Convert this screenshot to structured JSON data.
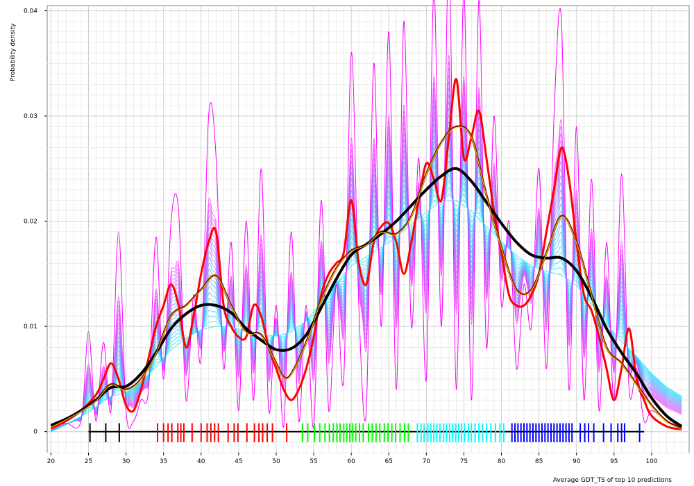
{
  "chart_data": {
    "type": "line",
    "title": "",
    "xlabel": "Average GDT_TS of top 10 predictions",
    "ylabel": "Probability density",
    "xlim": [
      19.5,
      105
    ],
    "ylim": [
      -0.002,
      0.0405
    ],
    "grid": true,
    "legend": "none",
    "x_ticks": [
      20,
      25,
      30,
      35,
      40,
      45,
      50,
      55,
      60,
      65,
      70,
      75,
      80,
      85,
      90,
      95,
      100
    ],
    "x_tick_labels": [
      "20",
      "25",
      "30",
      "35",
      "40",
      "45",
      "50",
      "55",
      "60",
      "65",
      "70",
      "75",
      "80",
      "85",
      "90",
      "95",
      "100"
    ],
    "y_ticks": [
      0,
      0.01,
      0.02,
      0.03,
      0.04
    ],
    "y_tick_labels": [
      "0",
      "0.01",
      "0.02",
      "0.03",
      "0.04"
    ],
    "series": [
      {
        "color": "#ff00ff",
        "width": 1,
        "x": [
          20,
          22,
          24,
          25,
          26,
          27,
          28,
          29,
          30,
          31,
          32,
          33,
          34,
          35,
          36,
          37,
          38,
          39,
          40,
          41,
          42,
          43,
          44,
          45,
          46,
          47,
          48,
          49,
          50,
          51,
          52,
          53,
          54,
          55,
          56,
          57,
          58,
          59,
          60,
          61,
          62,
          63,
          64,
          65,
          66,
          67,
          68,
          69,
          70,
          71,
          72,
          73,
          74,
          75,
          76,
          77,
          78,
          79,
          80,
          81,
          82,
          83,
          84,
          85,
          86,
          87,
          88,
          89,
          90,
          91,
          92,
          93,
          94,
          95,
          96,
          97,
          98,
          99,
          100,
          102,
          104
        ],
        "y": [
          0.0004,
          0.0008,
          0.001,
          0.0095,
          0.001,
          0.0085,
          0.002,
          0.019,
          0.002,
          0.001,
          0.003,
          0.004,
          0.0185,
          0.005,
          0.02,
          0.021,
          0.003,
          0.013,
          0.007,
          0.03,
          0.026,
          0.006,
          0.018,
          0.002,
          0.02,
          0.003,
          0.025,
          0.002,
          0.012,
          0.0005,
          0.019,
          0.001,
          0.012,
          0.0005,
          0.022,
          0.002,
          0.014,
          0.005,
          0.036,
          0.012,
          0.002,
          0.035,
          0.01,
          0.038,
          0.004,
          0.039,
          0.01,
          0.026,
          0.005,
          0.042,
          0.01,
          0.045,
          0.004,
          0.042,
          0.003,
          0.041,
          0.008,
          0.03,
          0.012,
          0.02,
          0.006,
          0.014,
          0.01,
          0.025,
          0.006,
          0.03,
          0.039,
          0.004,
          0.029,
          0.003,
          0.024,
          0.002,
          0.018,
          0.003,
          0.0245,
          0.004,
          0.006,
          0.001,
          0.002,
          0.001,
          0.0005
        ]
      },
      {
        "color": "#ff0000",
        "width": 3,
        "x": [
          20,
          22,
          24,
          26,
          27,
          28,
          29,
          30,
          31,
          32,
          33,
          34,
          35,
          36,
          37,
          38,
          39,
          40,
          41,
          42,
          43,
          44,
          45,
          46,
          47,
          48,
          49,
          50,
          51,
          52,
          53,
          54,
          55,
          56,
          57,
          58,
          59,
          60,
          61,
          62,
          63,
          64,
          65,
          66,
          67,
          68,
          69,
          70,
          71,
          72,
          73,
          74,
          75,
          76,
          77,
          78,
          79,
          80,
          81,
          82,
          83,
          84,
          85,
          86,
          87,
          88,
          89,
          90,
          91,
          92,
          93,
          94,
          95,
          96,
          97,
          98,
          99,
          100,
          102,
          104
        ],
        "y": [
          0.0003,
          0.001,
          0.002,
          0.0035,
          0.005,
          0.0065,
          0.005,
          0.0025,
          0.002,
          0.004,
          0.007,
          0.01,
          0.012,
          0.014,
          0.012,
          0.008,
          0.011,
          0.015,
          0.018,
          0.019,
          0.012,
          0.01,
          0.009,
          0.009,
          0.012,
          0.011,
          0.008,
          0.006,
          0.004,
          0.003,
          0.004,
          0.006,
          0.009,
          0.013,
          0.015,
          0.016,
          0.017,
          0.022,
          0.016,
          0.014,
          0.018,
          0.0195,
          0.0198,
          0.018,
          0.015,
          0.018,
          0.022,
          0.0255,
          0.024,
          0.022,
          0.028,
          0.0335,
          0.026,
          0.028,
          0.0305,
          0.026,
          0.021,
          0.017,
          0.013,
          0.012,
          0.012,
          0.013,
          0.015,
          0.019,
          0.023,
          0.027,
          0.024,
          0.018,
          0.013,
          0.0115,
          0.009,
          0.006,
          0.003,
          0.006,
          0.0098,
          0.005,
          0.003,
          0.0015,
          0.0005,
          0.0002
        ]
      },
      {
        "color": "#7a1f00",
        "width": 3,
        "x": [
          20,
          22,
          24,
          26,
          28,
          30,
          32,
          34,
          36,
          38,
          40,
          42,
          44,
          46,
          48,
          50,
          51,
          52,
          54,
          56,
          58,
          60,
          62,
          64,
          66,
          68,
          70,
          72,
          74,
          76,
          78,
          80,
          82,
          84,
          86,
          88,
          90,
          92,
          94,
          96,
          98,
          100,
          102,
          104
        ],
        "y": [
          0.0005,
          0.0012,
          0.002,
          0.003,
          0.0045,
          0.004,
          0.005,
          0.0075,
          0.011,
          0.012,
          0.0135,
          0.0148,
          0.012,
          0.0095,
          0.0092,
          0.0065,
          0.0052,
          0.0055,
          0.0085,
          0.0125,
          0.0155,
          0.0172,
          0.0178,
          0.019,
          0.0188,
          0.0205,
          0.0245,
          0.0275,
          0.029,
          0.028,
          0.0225,
          0.0175,
          0.0135,
          0.0135,
          0.017,
          0.0205,
          0.018,
          0.013,
          0.008,
          0.0065,
          0.0045,
          0.0025,
          0.001,
          0.0003
        ]
      },
      {
        "color": "#000000",
        "width": 4,
        "x": [
          20,
          22,
          24,
          26,
          28,
          30,
          32,
          34,
          36,
          38,
          40,
          42,
          44,
          46,
          48,
          50,
          52,
          54,
          56,
          58,
          60,
          62,
          64,
          66,
          68,
          70,
          72,
          74,
          76,
          78,
          80,
          82,
          84,
          86,
          88,
          90,
          92,
          94,
          96,
          98,
          100,
          102,
          104
        ],
        "y": [
          0.0006,
          0.0012,
          0.002,
          0.003,
          0.0042,
          0.0043,
          0.0055,
          0.0075,
          0.0098,
          0.0112,
          0.012,
          0.012,
          0.0113,
          0.0098,
          0.0087,
          0.0078,
          0.0079,
          0.0092,
          0.0118,
          0.0145,
          0.0168,
          0.0178,
          0.0188,
          0.02,
          0.0215,
          0.023,
          0.0243,
          0.025,
          0.0238,
          0.0218,
          0.0198,
          0.018,
          0.0168,
          0.0165,
          0.0165,
          0.0153,
          0.0128,
          0.0098,
          0.0075,
          0.0055,
          0.0032,
          0.0015,
          0.0005
        ]
      }
    ],
    "rug": [
      {
        "color": "#000000",
        "x": [
          25.2,
          27.3,
          29.1
        ]
      },
      {
        "color": "#ff0000",
        "x": [
          34.2,
          35.0,
          35.6,
          36.1,
          36.9,
          37.3,
          37.7,
          38.8,
          40.0,
          40.8,
          41.3,
          41.8,
          42.3,
          43.6,
          44.4,
          44.9,
          46.1,
          47.1,
          47.7,
          48.2,
          48.8,
          49.5,
          51.4
        ]
      },
      {
        "color": "#00ff00",
        "x": [
          53.5,
          54.2,
          55.1,
          55.8,
          56.5,
          57.1,
          57.6,
          58.1,
          58.5,
          59.0,
          59.4,
          59.8,
          60.2,
          60.6,
          61.1,
          61.6,
          62.3,
          62.8,
          63.3,
          63.8,
          64.4,
          64.9,
          65.4,
          65.9,
          66.5,
          67.1,
          67.6
        ]
      },
      {
        "color": "#00ffff",
        "x": [
          68.8,
          69.3,
          69.7,
          70.2,
          70.6,
          71.0,
          71.4,
          71.8,
          72.3,
          72.7,
          73.1,
          73.5,
          73.9,
          74.3,
          74.7,
          75.1,
          75.6,
          76.0,
          76.5,
          77.0,
          77.5,
          78.0,
          78.6,
          79.2,
          79.8,
          80.3
        ]
      },
      {
        "color": "#0000ff",
        "x": [
          81.4,
          81.8,
          82.2,
          82.6,
          83.0,
          83.4,
          83.8,
          84.2,
          84.6,
          85.0,
          85.4,
          85.8,
          86.2,
          86.6,
          87.0,
          87.4,
          87.8,
          88.2,
          88.6,
          89.0,
          89.4,
          90.5,
          91.1,
          91.6,
          92.3,
          93.6,
          94.6,
          95.5,
          96.0,
          96.4,
          98.4
        ]
      }
    ]
  }
}
